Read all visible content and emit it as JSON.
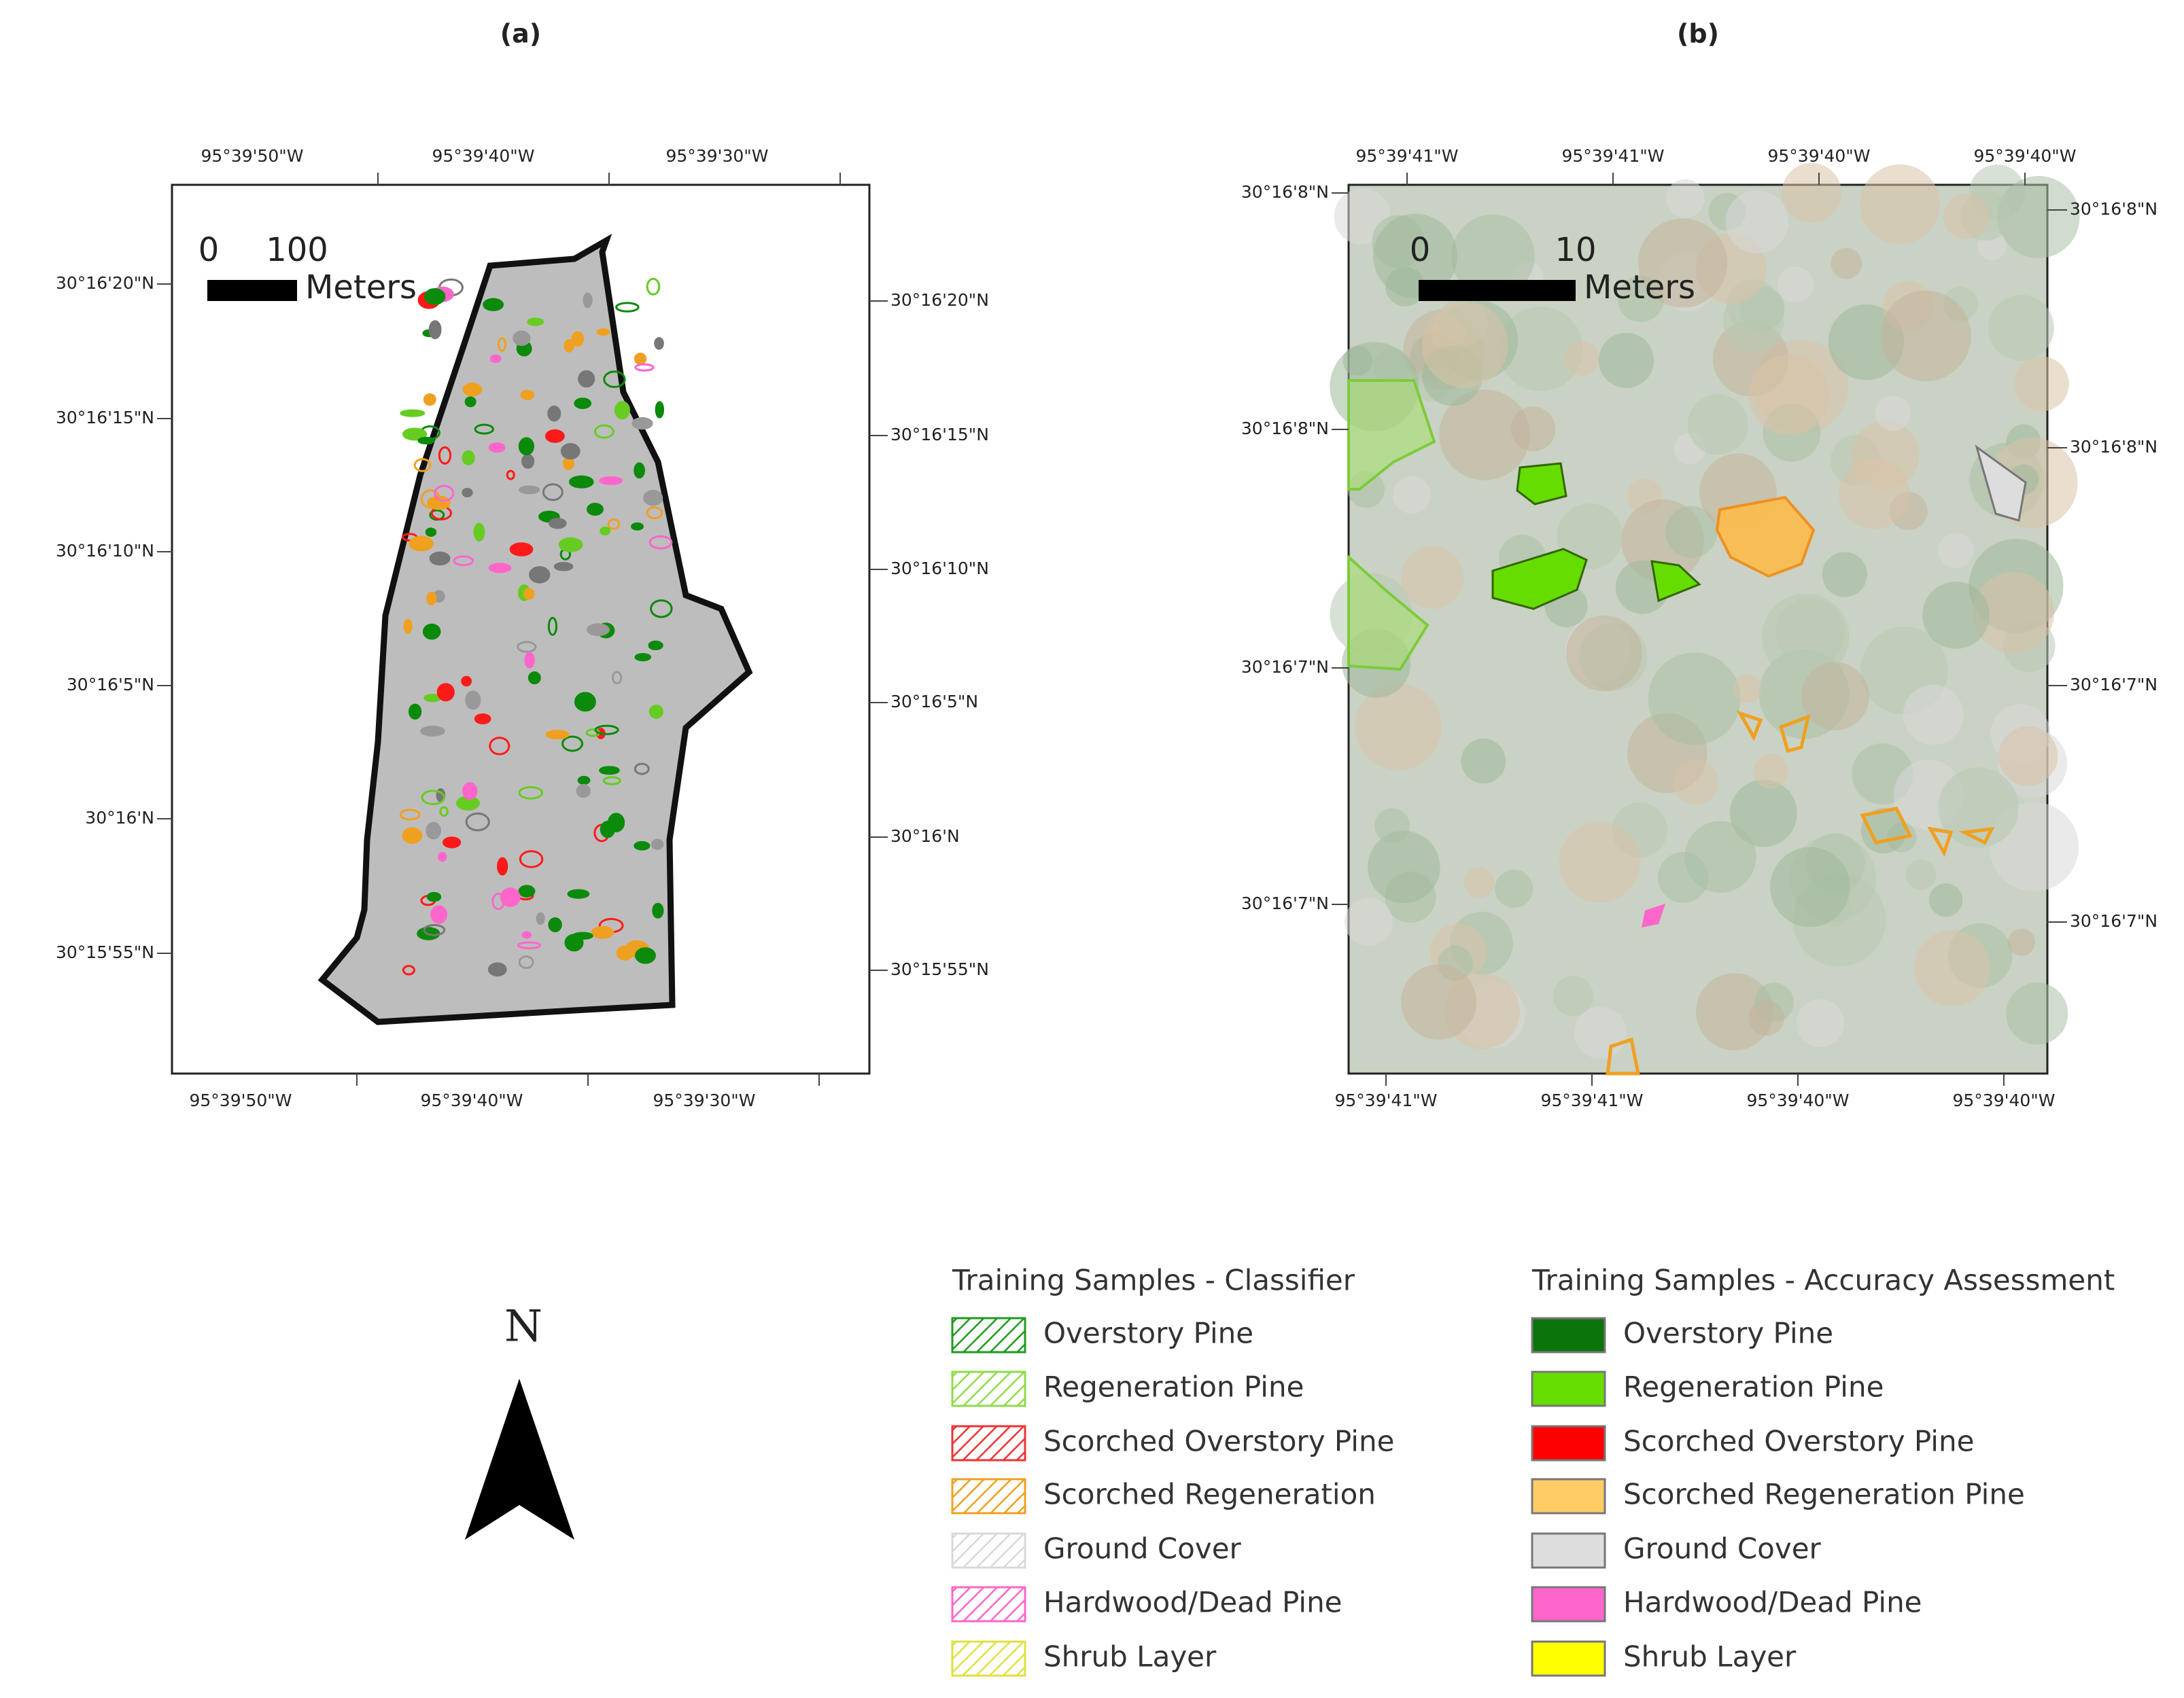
{
  "panels": [
    {
      "label": "(a)",
      "top_labels": [
        "95°39'50\"W",
        "95°39'40\"W",
        "95°39'30\"W"
      ],
      "bottom_labels": [
        "95°39'50\"W",
        "95°39'40\"W",
        "95°39'30\"W"
      ],
      "left_labels": [
        "30°16'20\"N",
        "30°16'15\"N",
        "30°16'10\"N",
        "30°16'5\"N",
        "30°16'N",
        "30°15'55\"N"
      ],
      "right_labels": [
        "30°16'20\"N",
        "30°16'15\"N",
        "30°16'10\"N",
        "30°16'5\"N",
        "30°16'N",
        "30°15'55\"N"
      ],
      "scale": {
        "start": "0",
        "end": "100",
        "unit": "Meters"
      }
    },
    {
      "label": "(b)",
      "top_labels": [
        "95°39'41\"W",
        "95°39'41\"W",
        "95°39'40\"W",
        "95°39'40\"W"
      ],
      "bottom_labels": [
        "95°39'41\"W",
        "95°39'41\"W",
        "95°39'40\"W",
        "95°39'40\"W"
      ],
      "left_labels": [
        "30°16'8\"N",
        "30°16'8\"N",
        "30°16'7\"N",
        "30°16'7\"N"
      ],
      "right_labels": [
        "30°16'8\"N",
        "30°16'8\"N",
        "30°16'7\"N",
        "30°16'7\"N"
      ],
      "scale": {
        "start": "0",
        "end": "10",
        "unit": "Meters"
      }
    }
  ],
  "north": "N",
  "legends": [
    {
      "title": "Training Samples - Classifier",
      "hatched": true,
      "items": [
        {
          "label": "Overstory Pine",
          "color": "#1f9a1f"
        },
        {
          "label": "Regeneration Pine",
          "color": "#8ddc4a"
        },
        {
          "label": "Scorched Overstory Pine",
          "color": "#ee3333"
        },
        {
          "label": "Scorched Regeneration",
          "color": "#f0a020"
        },
        {
          "label": "Ground Cover",
          "color": "#d8d8d8"
        },
        {
          "label": "Hardwood/Dead Pine",
          "color": "#ff66cc"
        },
        {
          "label": "Shrub Layer",
          "color": "#e0e040"
        }
      ]
    },
    {
      "title": "Training Samples - Accuracy Assessment",
      "hatched": false,
      "items": [
        {
          "label": "Overstory Pine",
          "color": "#0b740b"
        },
        {
          "label": "Regeneration Pine",
          "color": "#66dd00"
        },
        {
          "label": "Scorched Overstory Pine",
          "color": "#ff0000"
        },
        {
          "label": "Scorched Regeneration Pine",
          "color": "#ffcc66"
        },
        {
          "label": "Ground Cover",
          "color": "#dddddd"
        },
        {
          "label": "Hardwood/Dead Pine",
          "color": "#ff66cc"
        },
        {
          "label": "Shrub Layer",
          "color": "#ffff00"
        }
      ]
    }
  ]
}
